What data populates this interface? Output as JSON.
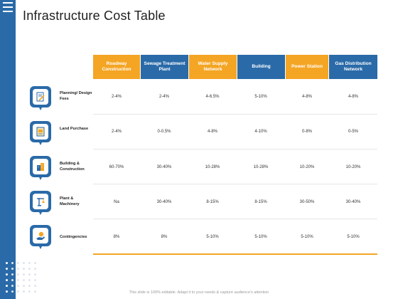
{
  "title": "Infrastructure Cost Table",
  "columns": [
    {
      "label": "Roadway Construction",
      "color": "#f4a524"
    },
    {
      "label": "Sewage Treatment Plant",
      "color": "#2a6aa8"
    },
    {
      "label": "Water Supply Network",
      "color": "#f4a524"
    },
    {
      "label": "Building",
      "color": "#2a6aa8"
    },
    {
      "label": "Power Station",
      "color": "#f4a524"
    },
    {
      "label": "Gas Distribution Network",
      "color": "#2a6aa8"
    }
  ],
  "rows": [
    {
      "label": "Planning/ Design Fees",
      "icon": "pencil-document-icon",
      "values": [
        "2-4%",
        "2-4%",
        "4-6.5%",
        "5-10%",
        "4-8%",
        "4-8%"
      ]
    },
    {
      "label": "Land Purchase",
      "icon": "land-document-icon",
      "values": [
        "2-4%",
        "0-0.5%",
        "4-8%",
        "4-10%",
        "0-8%",
        "0-5%"
      ]
    },
    {
      "label": "Building & Construction",
      "icon": "building-icon",
      "values": [
        "60-70%",
        "30-40%",
        "10-28%",
        "10-28%",
        "10-20%",
        "10-20%"
      ]
    },
    {
      "label": "Plant & Machinery",
      "icon": "crane-icon",
      "values": [
        "Na",
        "30-40%",
        "8-15%",
        "8-15%",
        "30-50%",
        "30-40%"
      ]
    },
    {
      "label": "Contingencies",
      "icon": "money-hand-icon",
      "values": [
        "8%",
        "8%",
        "5-10%",
        "5-10%",
        "5-10%",
        "5-10%"
      ]
    }
  ],
  "footer": "This slide is 100% editable. Adapt it to your needs & capture audience's attention",
  "colors": {
    "accent": "#f4a524",
    "primary": "#2a6aa8"
  }
}
